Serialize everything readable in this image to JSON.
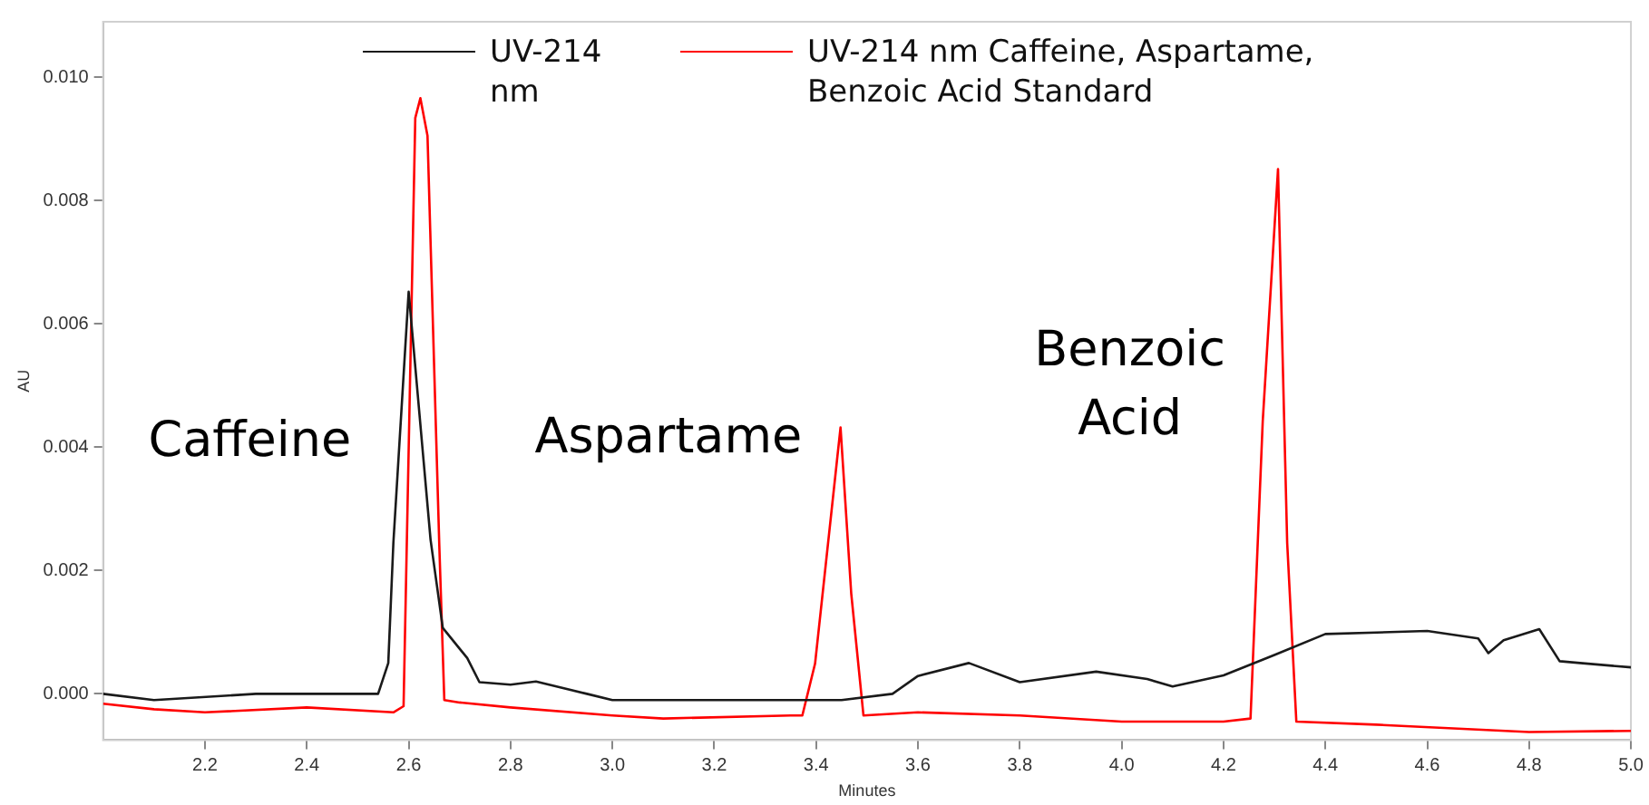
{
  "chart_data": {
    "type": "line",
    "xlabel": "Minutes",
    "ylabel": "AU",
    "xlim": [
      2.0,
      5.0
    ],
    "ylim": [
      -0.00075,
      0.0109
    ],
    "xticks": [
      2.2,
      2.4,
      2.6,
      2.8,
      {
        "value": 3.0,
        "label": "3.0"
      },
      3.2,
      3.4,
      3.6,
      3.8,
      {
        "value": 4.0,
        "label": "4.0"
      },
      4.2,
      4.4,
      4.6,
      4.8,
      {
        "value": 5.0,
        "label": "5.0"
      }
    ],
    "yticks": [
      {
        "value": 0,
        "label": "0.000"
      },
      0.002,
      0.004,
      0.006,
      0.008,
      {
        "value": 0.01,
        "label": "0.010"
      }
    ],
    "grid": false,
    "legend": "top",
    "marker": "none",
    "line_style": "solid",
    "series": [
      {
        "name": "UV-214 nm",
        "color": "#1a1a1a",
        "x": [
          2.0,
          2.1,
          2.3,
          2.5,
          2.54,
          2.56,
          2.57,
          2.6,
          2.643,
          2.667,
          2.715,
          2.739,
          2.8,
          2.85,
          2.95,
          3.0,
          3.2,
          3.4,
          3.45,
          3.55,
          3.6,
          3.7,
          3.8,
          3.95,
          4.05,
          4.1,
          4.2,
          4.3,
          4.4,
          4.6,
          4.7,
          4.72,
          4.75,
          4.82,
          4.86,
          4.9,
          5.0
        ],
        "values": [
          0.0,
          -0.0001,
          0.0,
          0.0,
          0.0,
          0.0005,
          0.00245,
          0.00652,
          0.0025,
          0.00107,
          0.00058,
          0.00019,
          0.00015,
          0.0002,
          0.0,
          -0.0001,
          -0.0001,
          -0.0001,
          -0.0001,
          0.0,
          0.00029,
          0.0005,
          0.00019,
          0.00036,
          0.00024,
          0.00012,
          0.0003,
          0.00063,
          0.00097,
          0.00102,
          0.0009,
          0.00066,
          0.00087,
          0.00105,
          0.00053,
          0.0005,
          0.00043
        ]
      },
      {
        "name": "UV-214 nm Caffeine, Aspartame, Benzoic Acid Standard",
        "color": "#ff0000",
        "x": [
          2.0,
          2.1,
          2.2,
          2.4,
          2.57,
          2.59,
          2.613,
          2.623,
          2.637,
          2.66,
          2.67,
          2.7,
          2.8,
          3.0,
          3.1,
          3.35,
          3.373,
          3.398,
          3.448,
          3.469,
          3.493,
          3.6,
          3.8,
          4.0,
          4.2,
          4.253,
          4.277,
          4.307,
          4.325,
          4.343,
          4.5,
          4.8,
          5.0
        ],
        "values": [
          -0.00016,
          -0.00025,
          -0.0003,
          -0.00022,
          -0.0003,
          -0.0002,
          0.00934,
          0.00966,
          0.00905,
          0.00245,
          -0.0001,
          -0.00014,
          -0.00022,
          -0.00035,
          -0.0004,
          -0.00035,
          -0.00035,
          0.00049,
          0.00432,
          0.00163,
          -0.00035,
          -0.0003,
          -0.00035,
          -0.00045,
          -0.00045,
          -0.0004,
          0.00442,
          0.00851,
          0.00245,
          -0.00045,
          -0.0005,
          -0.00062,
          -0.0006
        ]
      }
    ],
    "annotations": [
      "Caffeine",
      "Aspartame",
      "Benzoic Acid"
    ]
  }
}
